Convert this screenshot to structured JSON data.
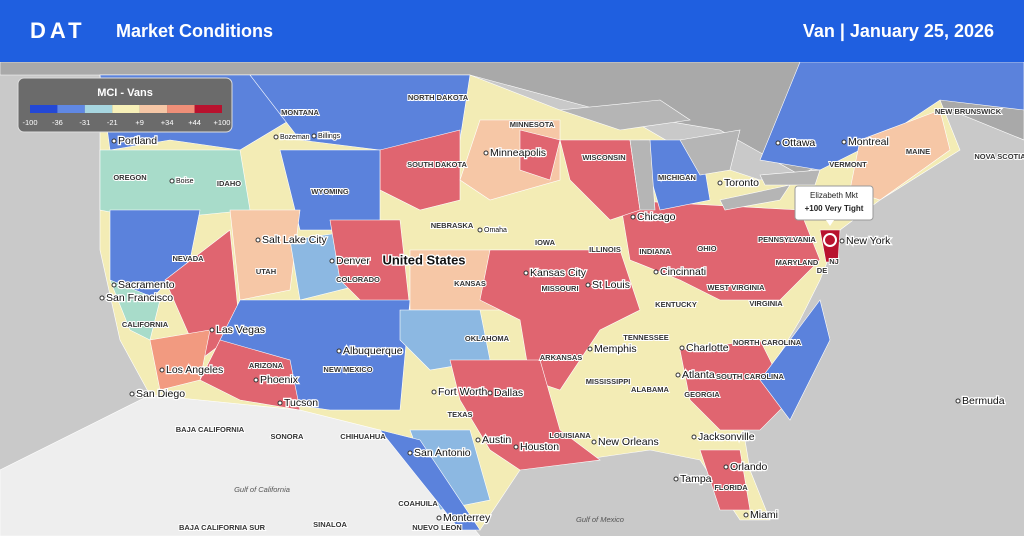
{
  "header": {
    "logo": "DAT",
    "title": "Market Conditions",
    "subtitle": "Van | January 25, 2026"
  },
  "legend": {
    "title": "MCI - Vans",
    "labels": [
      "-100",
      "-36",
      "-31",
      "-21",
      "+9",
      "+34",
      "+44",
      "+100"
    ],
    "colors": [
      "#2348d6",
      "#6088e4",
      "#a7d6e0",
      "#f7f0b8",
      "#f6c7a6",
      "#ef8f78",
      "#b8122e"
    ]
  },
  "callout": {
    "market": "Elizabeth Mkt",
    "status": "+100 Very Tight"
  },
  "map": {
    "country": "United States",
    "regions": [
      "NORTH DAKOTA",
      "MONTANA",
      "MINNESOTA",
      "SOUTH DAKOTA",
      "OREGON",
      "IDAHO",
      "WYOMING",
      "WISCONSIN",
      "MICHIGAN",
      "IOWA",
      "NEBRASKA",
      "ILLINOIS",
      "INDIANA",
      "OHIO",
      "PENNSYLVANIA",
      "NEVADA",
      "UTAH",
      "COLORADO",
      "KANSAS",
      "MISSOURI",
      "WEST VIRGINIA",
      "KENTUCKY",
      "VIRGINIA",
      "CALIFORNIA",
      "OKLAHOMA",
      "TENNESSEE",
      "NORTH CAROLINA",
      "ARKANSAS",
      "ARIZONA",
      "NEW MEXICO",
      "SOUTH CAROLINA",
      "MISSISSIPPI",
      "ALABAMA",
      "GEORGIA",
      "TEXAS",
      "LOUISIANA",
      "FLORIDA",
      "BAJA CALIFORNIA",
      "SONORA",
      "CHIHUAHUA",
      "COAHUILA",
      "NUEVO LEON",
      "BAJA CALIFORNIA SUR",
      "SINALOA",
      "MAINE",
      "VERMONT",
      "NEW BRUNSWICK",
      "NOVA SCOTIA",
      "MARYLAND",
      "NJ",
      "DE",
      "CT"
    ],
    "cities": [
      "Portland",
      "Bozeman",
      "Billings",
      "Minneapolis",
      "Boise",
      "Salt Lake City",
      "Denver",
      "Omaha",
      "Chicago",
      "Toronto",
      "Ottawa",
      "Montreal",
      "Sacramento",
      "San Francisco",
      "Kansas City",
      "St Louis",
      "Cincinnati",
      "Las Vegas",
      "Albuquerque",
      "Memphis",
      "Charlotte",
      "Los Angeles",
      "Phoenix",
      "Atlanta",
      "San Diego",
      "Tucson",
      "Fort Worth",
      "Dallas",
      "Austin",
      "Houston",
      "New Orleans",
      "San Antonio",
      "Jacksonville",
      "Orlando",
      "Tampa",
      "Miami",
      "Monterrey",
      "New York",
      "Bermuda"
    ],
    "water": [
      "Gulf of California",
      "Gulf of Mexico"
    ]
  }
}
